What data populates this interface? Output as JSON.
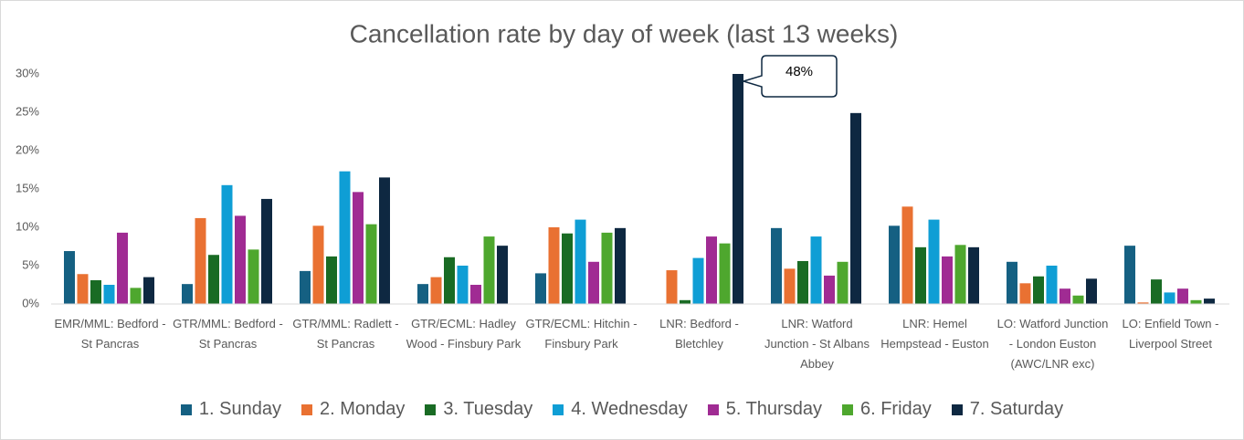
{
  "chart_data": {
    "type": "bar",
    "title": "Cancellation rate by day of week (last 13 weeks)",
    "categories": [
      "EMR/MML: Bedford - St Pancras",
      "GTR/MML: Bedford - St Pancras",
      "GTR/MML: Radlett - St Pancras",
      "GTR/ECML: Hadley Wood - Finsbury Park",
      "GTR/ECML: Hitchin - Finsbury Park",
      "LNR: Bedford - Bletchley",
      "LNR: Watford Junction - St Albans Abbey",
      "LNR: Hemel Hempstead - Euston",
      "LO: Watford Junction - London Euston (AWC/LNR exc)",
      "LO: Enfield Town - Liverpool Street"
    ],
    "series": [
      {
        "name": "1. Sunday",
        "color": "#156082",
        "values": [
          6.9,
          2.6,
          4.3,
          2.6,
          4.0,
          0,
          9.9,
          10.2,
          5.5,
          7.6
        ]
      },
      {
        "name": "2. Monday",
        "color": "#E97132",
        "values": [
          3.9,
          11.2,
          10.2,
          3.5,
          10.0,
          4.4,
          4.6,
          12.7,
          2.7,
          0.2
        ]
      },
      {
        "name": "3. Tuesday",
        "color": "#196B24",
        "values": [
          3.1,
          6.4,
          6.2,
          6.1,
          9.2,
          0.5,
          5.6,
          7.4,
          3.6,
          3.2
        ]
      },
      {
        "name": "4. Wednesday",
        "color": "#0F9ED5",
        "values": [
          2.5,
          15.5,
          17.3,
          5.0,
          11.0,
          6.0,
          8.8,
          11.0,
          5.0,
          1.5
        ]
      },
      {
        "name": "5. Thursday",
        "color": "#A02B93",
        "values": [
          9.3,
          11.5,
          14.6,
          2.5,
          5.5,
          8.8,
          3.7,
          6.2,
          2.0,
          2.0
        ]
      },
      {
        "name": "6. Friday",
        "color": "#4EA72E",
        "values": [
          2.1,
          7.1,
          10.4,
          8.8,
          9.3,
          7.9,
          5.5,
          7.7,
          1.1,
          0.5
        ]
      },
      {
        "name": "7. Saturday",
        "color": "#0E2841",
        "values": [
          3.5,
          13.7,
          16.5,
          7.6,
          9.9,
          48,
          24.9,
          7.4,
          3.3,
          0.7
        ],
        "value_labels": [
          null,
          null,
          null,
          null,
          null,
          "48%",
          null,
          null,
          null,
          null
        ]
      }
    ],
    "ylim": [
      0,
      30
    ],
    "yticks": [
      {
        "value": 0,
        "label": "0%"
      },
      {
        "value": 5,
        "label": "5%"
      },
      {
        "value": 10,
        "label": "10%"
      },
      {
        "value": 15,
        "label": "15%"
      },
      {
        "value": 20,
        "label": "20%"
      },
      {
        "value": 25,
        "label": "25%"
      },
      {
        "value": 30,
        "label": "30%"
      }
    ],
    "grid": false,
    "legend": "bottom"
  }
}
